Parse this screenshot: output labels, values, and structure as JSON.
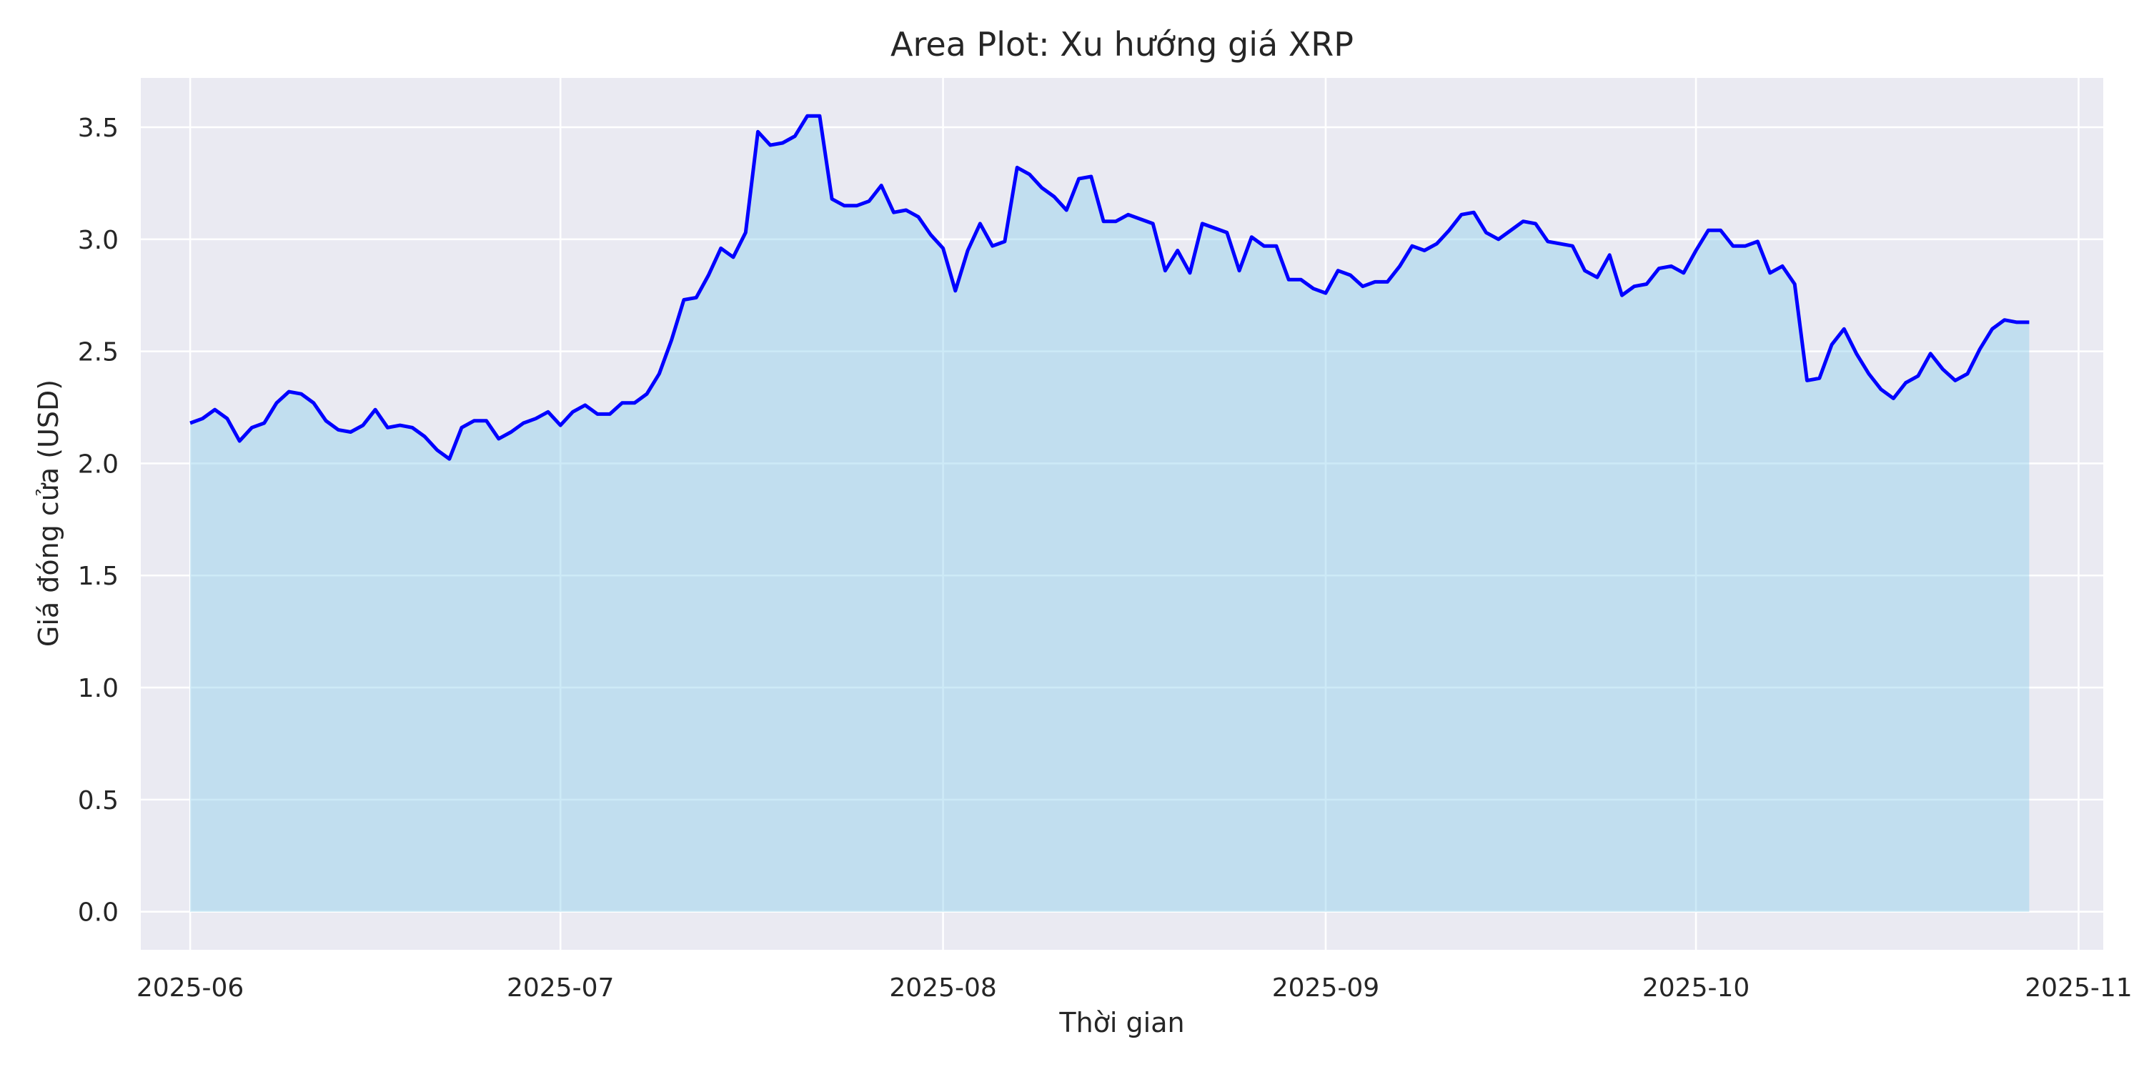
{
  "chart_data": {
    "type": "area",
    "title": "Area Plot: Xu hướng giá XRP",
    "xlabel": "Thời gian",
    "ylabel": "Giá đóng cửa (USD)",
    "xlim": [
      "2025-05-28",
      "2025-11-03"
    ],
    "ylim": [
      -0.17,
      3.72
    ],
    "x_ticks": [
      "2025-06",
      "2025-07",
      "2025-08",
      "2025-09",
      "2025-10",
      "2025-11"
    ],
    "x_tick_dates": [
      "2025-06-01",
      "2025-07-01",
      "2025-08-01",
      "2025-09-01",
      "2025-10-01",
      "2025-11-01"
    ],
    "y_ticks": [
      "0.0",
      "0.5",
      "1.0",
      "1.5",
      "2.0",
      "2.5",
      "3.0",
      "3.5"
    ],
    "grid": true,
    "colors": {
      "line": "#0000ff",
      "fill": "#87ceeb",
      "background": "#eaeaf2",
      "grid": "#ffffff"
    },
    "series": [
      {
        "values": [
          [
            "2025-06-01",
            2.18
          ],
          [
            "2025-06-02",
            2.2
          ],
          [
            "2025-06-03",
            2.24
          ],
          [
            "2025-06-04",
            2.2
          ],
          [
            "2025-06-05",
            2.1
          ],
          [
            "2025-06-06",
            2.16
          ],
          [
            "2025-06-07",
            2.18
          ],
          [
            "2025-06-08",
            2.27
          ],
          [
            "2025-06-09",
            2.32
          ],
          [
            "2025-06-10",
            2.31
          ],
          [
            "2025-06-11",
            2.27
          ],
          [
            "2025-06-12",
            2.19
          ],
          [
            "2025-06-13",
            2.15
          ],
          [
            "2025-06-14",
            2.14
          ],
          [
            "2025-06-15",
            2.17
          ],
          [
            "2025-06-16",
            2.24
          ],
          [
            "2025-06-17",
            2.16
          ],
          [
            "2025-06-18",
            2.17
          ],
          [
            "2025-06-19",
            2.16
          ],
          [
            "2025-06-20",
            2.12
          ],
          [
            "2025-06-21",
            2.06
          ],
          [
            "2025-06-22",
            2.02
          ],
          [
            "2025-06-23",
            2.16
          ],
          [
            "2025-06-24",
            2.19
          ],
          [
            "2025-06-25",
            2.19
          ],
          [
            "2025-06-26",
            2.11
          ],
          [
            "2025-06-27",
            2.14
          ],
          [
            "2025-06-28",
            2.18
          ],
          [
            "2025-06-29",
            2.2
          ],
          [
            "2025-06-30",
            2.23
          ],
          [
            "2025-07-01",
            2.17
          ],
          [
            "2025-07-02",
            2.23
          ],
          [
            "2025-07-03",
            2.26
          ],
          [
            "2025-07-04",
            2.22
          ],
          [
            "2025-07-05",
            2.22
          ],
          [
            "2025-07-06",
            2.27
          ],
          [
            "2025-07-07",
            2.27
          ],
          [
            "2025-07-08",
            2.31
          ],
          [
            "2025-07-09",
            2.4
          ],
          [
            "2025-07-10",
            2.55
          ],
          [
            "2025-07-11",
            2.73
          ],
          [
            "2025-07-12",
            2.74
          ],
          [
            "2025-07-13",
            2.84
          ],
          [
            "2025-07-14",
            2.96
          ],
          [
            "2025-07-15",
            2.92
          ],
          [
            "2025-07-16",
            3.03
          ],
          [
            "2025-07-17",
            3.48
          ],
          [
            "2025-07-18",
            3.42
          ],
          [
            "2025-07-19",
            3.43
          ],
          [
            "2025-07-20",
            3.46
          ],
          [
            "2025-07-21",
            3.55
          ],
          [
            "2025-07-22",
            3.55
          ],
          [
            "2025-07-23",
            3.18
          ],
          [
            "2025-07-24",
            3.15
          ],
          [
            "2025-07-25",
            3.15
          ],
          [
            "2025-07-26",
            3.17
          ],
          [
            "2025-07-27",
            3.24
          ],
          [
            "2025-07-28",
            3.12
          ],
          [
            "2025-07-29",
            3.13
          ],
          [
            "2025-07-30",
            3.1
          ],
          [
            "2025-07-31",
            3.02
          ],
          [
            "2025-08-01",
            2.96
          ],
          [
            "2025-08-02",
            2.77
          ],
          [
            "2025-08-03",
            2.95
          ],
          [
            "2025-08-04",
            3.07
          ],
          [
            "2025-08-05",
            2.97
          ],
          [
            "2025-08-06",
            2.99
          ],
          [
            "2025-08-07",
            3.32
          ],
          [
            "2025-08-08",
            3.29
          ],
          [
            "2025-08-09",
            3.23
          ],
          [
            "2025-08-10",
            3.19
          ],
          [
            "2025-08-11",
            3.13
          ],
          [
            "2025-08-12",
            3.27
          ],
          [
            "2025-08-13",
            3.28
          ],
          [
            "2025-08-14",
            3.08
          ],
          [
            "2025-08-15",
            3.08
          ],
          [
            "2025-08-16",
            3.11
          ],
          [
            "2025-08-17",
            3.09
          ],
          [
            "2025-08-18",
            3.07
          ],
          [
            "2025-08-19",
            2.86
          ],
          [
            "2025-08-20",
            2.95
          ],
          [
            "2025-08-21",
            2.85
          ],
          [
            "2025-08-22",
            3.07
          ],
          [
            "2025-08-23",
            3.05
          ],
          [
            "2025-08-24",
            3.03
          ],
          [
            "2025-08-25",
            2.86
          ],
          [
            "2025-08-26",
            3.01
          ],
          [
            "2025-08-27",
            2.97
          ],
          [
            "2025-08-28",
            2.97
          ],
          [
            "2025-08-29",
            2.82
          ],
          [
            "2025-08-30",
            2.82
          ],
          [
            "2025-08-31",
            2.78
          ],
          [
            "2025-09-01",
            2.76
          ],
          [
            "2025-09-02",
            2.86
          ],
          [
            "2025-09-03",
            2.84
          ],
          [
            "2025-09-04",
            2.79
          ],
          [
            "2025-09-05",
            2.81
          ],
          [
            "2025-09-06",
            2.81
          ],
          [
            "2025-09-07",
            2.88
          ],
          [
            "2025-09-08",
            2.97
          ],
          [
            "2025-09-09",
            2.95
          ],
          [
            "2025-09-10",
            2.98
          ],
          [
            "2025-09-11",
            3.04
          ],
          [
            "2025-09-12",
            3.11
          ],
          [
            "2025-09-13",
            3.12
          ],
          [
            "2025-09-14",
            3.03
          ],
          [
            "2025-09-15",
            3.0
          ],
          [
            "2025-09-16",
            3.04
          ],
          [
            "2025-09-17",
            3.08
          ],
          [
            "2025-09-18",
            3.07
          ],
          [
            "2025-09-19",
            2.99
          ],
          [
            "2025-09-20",
            2.98
          ],
          [
            "2025-09-21",
            2.97
          ],
          [
            "2025-09-22",
            2.86
          ],
          [
            "2025-09-23",
            2.83
          ],
          [
            "2025-09-24",
            2.93
          ],
          [
            "2025-09-25",
            2.75
          ],
          [
            "2025-09-26",
            2.79
          ],
          [
            "2025-09-27",
            2.8
          ],
          [
            "2025-09-28",
            2.87
          ],
          [
            "2025-09-29",
            2.88
          ],
          [
            "2025-09-30",
            2.85
          ],
          [
            "2025-10-01",
            2.95
          ],
          [
            "2025-10-02",
            3.04
          ],
          [
            "2025-10-03",
            3.04
          ],
          [
            "2025-10-04",
            2.97
          ],
          [
            "2025-10-05",
            2.97
          ],
          [
            "2025-10-06",
            2.99
          ],
          [
            "2025-10-07",
            2.85
          ],
          [
            "2025-10-08",
            2.88
          ],
          [
            "2025-10-09",
            2.8
          ],
          [
            "2025-10-10",
            2.37
          ],
          [
            "2025-10-11",
            2.38
          ],
          [
            "2025-10-12",
            2.53
          ],
          [
            "2025-10-13",
            2.6
          ],
          [
            "2025-10-14",
            2.49
          ],
          [
            "2025-10-15",
            2.4
          ],
          [
            "2025-10-16",
            2.33
          ],
          [
            "2025-10-17",
            2.29
          ],
          [
            "2025-10-18",
            2.36
          ],
          [
            "2025-10-19",
            2.39
          ],
          [
            "2025-10-20",
            2.49
          ],
          [
            "2025-10-21",
            2.42
          ],
          [
            "2025-10-22",
            2.37
          ],
          [
            "2025-10-23",
            2.4
          ],
          [
            "2025-10-24",
            2.51
          ],
          [
            "2025-10-25",
            2.6
          ],
          [
            "2025-10-26",
            2.64
          ],
          [
            "2025-10-27",
            2.63
          ],
          [
            "2025-10-28",
            2.63
          ]
        ]
      }
    ]
  }
}
